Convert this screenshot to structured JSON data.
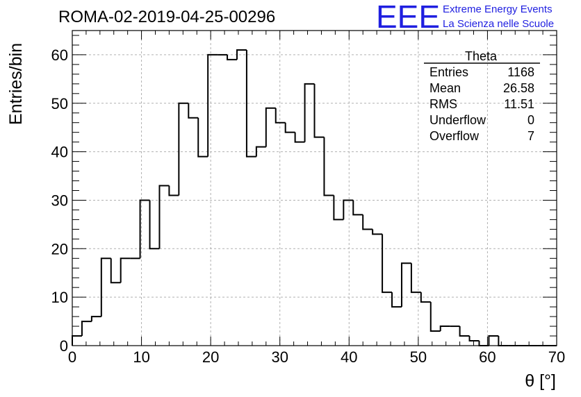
{
  "header": {
    "run_title": "ROMA-02-2019-04-25-00296",
    "logo_text": "EEE",
    "logo_line1": "Extreme Energy Events",
    "logo_line2": "La Scienza nelle Scuole"
  },
  "stats_box": {
    "title": "Theta",
    "rows": [
      {
        "label": "Entries",
        "value": "1168"
      },
      {
        "label": "Mean",
        "value": "26.58"
      },
      {
        "label": "RMS",
        "value": "11.51"
      },
      {
        "label": "Underflow",
        "value": "0"
      },
      {
        "label": "Overflow",
        "value": "7"
      }
    ]
  },
  "chart_data": {
    "type": "histogram",
    "xlabel": "θ [°]",
    "ylabel": "Entries/bin",
    "xlim": [
      0,
      70
    ],
    "ylim": [
      0,
      65
    ],
    "grid": true,
    "line_color": "#000000",
    "bin_width": 1.4,
    "x_ticks": [
      0,
      10,
      20,
      30,
      40,
      50,
      60,
      70
    ],
    "y_ticks": [
      0,
      10,
      20,
      30,
      40,
      50,
      60
    ],
    "values": [
      2,
      5,
      6,
      18,
      13,
      18,
      18,
      30,
      20,
      33,
      31,
      50,
      47,
      39,
      60,
      60,
      59,
      61,
      39,
      41,
      49,
      46,
      44,
      42,
      54,
      43,
      31,
      26,
      30,
      27,
      24,
      23,
      11,
      8,
      17,
      11,
      9,
      3,
      4,
      4,
      2,
      1,
      0,
      2,
      0,
      0,
      0,
      0,
      0,
      0
    ]
  }
}
